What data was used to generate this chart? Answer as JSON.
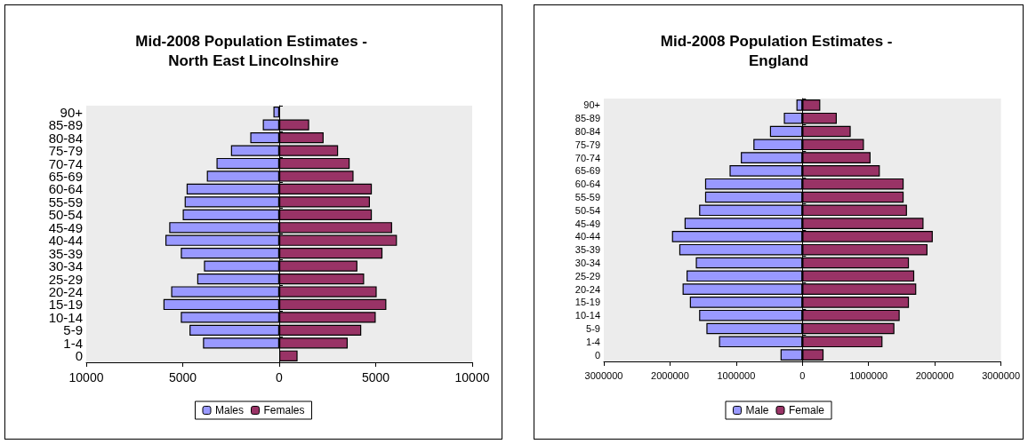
{
  "chart_data": [
    {
      "type": "bar",
      "orientation": "horizontal",
      "stacked": true,
      "title": "Mid-2008 Population Estimates - North East Lincolnshire",
      "legend": "bottom",
      "categories": [
        "90+",
        "85-89",
        "80-84",
        "75-79",
        "70-74",
        "65-69",
        "60-64",
        "55-59",
        "50-54",
        "45-49",
        "40-44",
        "35-39",
        "30-34",
        "25-29",
        "20-24",
        "15-19",
        "10-14",
        "5-9",
        "1-4",
        "0"
      ],
      "series": [
        {
          "name": "Males",
          "color": "#9999ff",
          "values": [
            -300,
            -850,
            -1500,
            -2500,
            -3250,
            -3750,
            -4800,
            -4900,
            -5000,
            -5700,
            -5900,
            -5100,
            -3900,
            -4250,
            -5600,
            -6000,
            -5100,
            -4650,
            -3950,
            null
          ]
        },
        {
          "name": "Females",
          "color": "#993366",
          "values": [
            null,
            1550,
            2300,
            3050,
            3650,
            3850,
            4800,
            4700,
            4800,
            5850,
            6100,
            5350,
            4050,
            4400,
            5050,
            5550,
            5000,
            4250,
            3550,
            950
          ]
        }
      ],
      "xlim": [
        -10000,
        10000
      ],
      "xticks": [
        {
          "value": -10000,
          "label": "10000"
        },
        {
          "value": -5000,
          "label": "5000"
        },
        0,
        5000,
        10000
      ]
    },
    {
      "type": "bar",
      "orientation": "horizontal",
      "stacked": true,
      "title": "Mid-2008 Population Estimates - England",
      "legend": "bottom",
      "categories": [
        "90+",
        "85-89",
        "80-84",
        "75-79",
        "70-74",
        "65-69",
        "60-64",
        "55-59",
        "50-54",
        "45-49",
        "40-44",
        "35-39",
        "30-34",
        "25-29",
        "20-24",
        "15-19",
        "10-14",
        "5-9",
        "1-4",
        "0"
      ],
      "series": [
        {
          "name": "Male",
          "color": "#9999ff",
          "values": [
            -90000,
            -280000,
            -490000,
            -740000,
            -930000,
            -1100000,
            -1470000,
            -1470000,
            -1560000,
            -1780000,
            -1970000,
            -1860000,
            -1610000,
            -1750000,
            -1810000,
            -1700000,
            -1560000,
            -1450000,
            -1260000,
            -330000
          ]
        },
        {
          "name": "Female",
          "color": "#993366",
          "values": [
            270000,
            520000,
            730000,
            930000,
            1030000,
            1170000,
            1530000,
            1530000,
            1580000,
            1830000,
            1970000,
            1890000,
            1610000,
            1690000,
            1720000,
            1610000,
            1470000,
            1390000,
            1210000,
            320000
          ]
        }
      ],
      "xlim": [
        -3000000,
        3000000
      ],
      "xticks": [
        {
          "value": -3000000,
          "label": "3000000"
        },
        {
          "value": -2000000,
          "label": "2000000"
        },
        {
          "value": -1000000,
          "label": "1000000"
        },
        0,
        1000000,
        2000000,
        3000000
      ]
    }
  ]
}
